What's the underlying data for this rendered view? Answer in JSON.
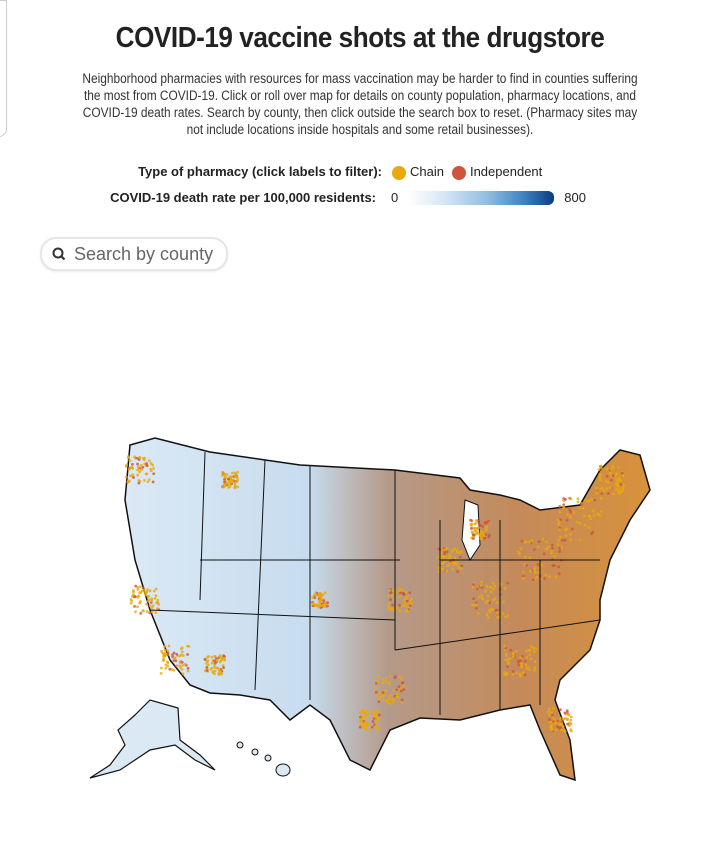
{
  "title": "COVID-19 vaccine shots at the drugstore",
  "description": "Neighborhood pharmacies with resources for mass vaccination may be harder to find in counties suffering the most from COVID-19. Click or roll over map for details on county population, pharmacy locations, and COVID-19 death rates. Search by county, then click outside the search box to reset. (Pharmacy sites may not include locations inside hospitals and some retail businesses).",
  "legend": {
    "type_label": "Type of pharmacy (click labels to filter):",
    "chain_label": "Chain",
    "independent_label": "Independent",
    "chain_color": "#e8a90d",
    "independent_color": "#d0533e",
    "death_rate_label": "COVID-19 death rate per 100,000 residents:",
    "scale_min": "0",
    "scale_max": "800"
  },
  "search": {
    "placeholder": "Search by county",
    "icon": "search-icon"
  }
}
